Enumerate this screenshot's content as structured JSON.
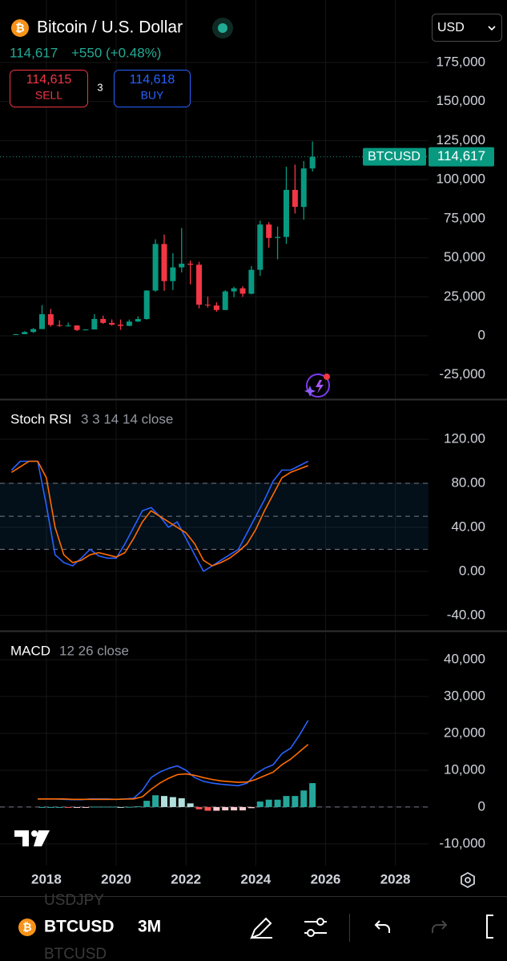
{
  "header": {
    "title": "Bitcoin / U.S. Dollar",
    "price": "114,617",
    "change": "+550 (+0.48%)",
    "sell_price": "114,615",
    "sell_label": "SELL",
    "spread": "3",
    "buy_price": "114,618",
    "buy_label": "BUY",
    "currency": "USD"
  },
  "chart_data": [
    {
      "type": "candlestick",
      "x": [
        2017.0,
        2017.25,
        2017.5,
        2017.75,
        2018.0,
        2018.25,
        2018.5,
        2018.75,
        2019.0,
        2019.25,
        2019.5,
        2019.75,
        2020.0,
        2020.25,
        2020.5,
        2020.75,
        2021.0,
        2021.25,
        2021.5,
        2021.75,
        2022.0,
        2022.25,
        2022.5,
        2022.75,
        2023.0,
        2023.25,
        2023.5,
        2023.75,
        2024.0,
        2024.25,
        2024.5,
        2024.75,
        2025.0,
        2025.25,
        2025.5
      ],
      "open": [
        960,
        1070,
        2480,
        4340,
        13850,
        6930,
        6390,
        6630,
        3740,
        4100,
        10820,
        8300,
        7200,
        6420,
        9140,
        10780,
        28990,
        58800,
        35040,
        43830,
        46220,
        45540,
        19930,
        19430,
        16550,
        28470,
        30470,
        26970,
        42280,
        71290,
        62680,
        63330,
        93430,
        82530,
        107170
      ],
      "high": [
        1300,
        2980,
        5000,
        19700,
        17250,
        9990,
        8500,
        6780,
        4150,
        13880,
        12950,
        10540,
        10500,
        10430,
        12480,
        29300,
        61800,
        64850,
        52920,
        69000,
        48200,
        47450,
        25200,
        21480,
        29200,
        31430,
        31800,
        44700,
        73800,
        72800,
        70000,
        108350,
        109600,
        111900,
        124450
      ],
      "low": [
        890,
        1060,
        1830,
        4300,
        5900,
        5750,
        5880,
        3120,
        3350,
        4070,
        7720,
        6520,
        3850,
        6150,
        8900,
        10370,
        28130,
        28800,
        29300,
        40600,
        32950,
        17600,
        18150,
        15480,
        16500,
        24750,
        24900,
        26560,
        38500,
        56500,
        49000,
        58900,
        78300,
        74400,
        105200
      ],
      "close": [
        1070,
        2480,
        4340,
        13850,
        6930,
        6390,
        6630,
        3740,
        4100,
        10820,
        8300,
        7200,
        6420,
        9140,
        10780,
        28990,
        58800,
        35040,
        43830,
        46220,
        45540,
        19930,
        19430,
        16550,
        28470,
        30470,
        26970,
        42280,
        71290,
        62680,
        63330,
        93430,
        82530,
        107170,
        114617
      ],
      "up_color": "#089981",
      "down_color": "#f23645",
      "ylim": [
        -40000,
        215000
      ],
      "yticks": [
        {
          "value": 175000,
          "label": "175,000"
        },
        {
          "value": 150000,
          "label": "150,000"
        },
        {
          "value": 125000,
          "label": "125,000"
        },
        {
          "value": 100000,
          "label": "100,000"
        },
        {
          "value": 75000,
          "label": "75,000"
        },
        {
          "value": 50000,
          "label": "50,000"
        },
        {
          "value": 25000,
          "label": "25,000"
        },
        0,
        {
          "value": -25000,
          "label": "-25,000"
        }
      ],
      "price_line": {
        "name": "BTCUSD",
        "value": 114617,
        "label": "114,617"
      }
    },
    {
      "type": "line",
      "title": "Stoch RSI",
      "subtitle": "3 3 14 14 close",
      "x": [
        2017.0,
        2017.25,
        2017.5,
        2017.75,
        2018.0,
        2018.25,
        2018.5,
        2018.75,
        2019.0,
        2019.25,
        2019.5,
        2019.75,
        2020.0,
        2020.25,
        2020.5,
        2020.75,
        2021.0,
        2021.25,
        2021.5,
        2021.75,
        2022.0,
        2022.25,
        2022.5,
        2022.75,
        2023.0,
        2023.25,
        2023.5,
        2023.75,
        2024.0,
        2024.25,
        2024.5,
        2024.75,
        2025.0,
        2025.25,
        2025.5
      ],
      "series": [
        {
          "color": "#2962ff",
          "values": [
            92,
            100,
            100,
            100,
            60,
            15,
            8,
            5,
            12,
            20,
            14,
            12,
            12,
            25,
            40,
            55,
            58,
            50,
            40,
            45,
            30,
            15,
            0,
            5,
            10,
            15,
            20,
            35,
            50,
            65,
            82,
            92,
            92,
            96,
            100
          ]
        },
        {
          "color": "#ff6d00",
          "values": [
            90,
            95,
            100,
            100,
            85,
            40,
            15,
            8,
            10,
            15,
            17,
            15,
            13,
            17,
            30,
            45,
            55,
            50,
            45,
            40,
            35,
            25,
            10,
            5,
            8,
            12,
            18,
            25,
            38,
            55,
            70,
            85,
            90,
            93,
            96
          ]
        }
      ],
      "bands": {
        "upper": 80,
        "middle": 50,
        "lower": 20
      },
      "ylim": [
        -54,
        155
      ],
      "yticks": [
        {
          "value": 120,
          "label": "120.00"
        },
        {
          "value": 80,
          "label": "80.00"
        },
        {
          "value": 40,
          "label": "40.00"
        },
        {
          "value": 0,
          "label": "0.00"
        },
        {
          "value": -40,
          "label": "-40.00"
        }
      ]
    },
    {
      "type": "macd",
      "title": "MACD",
      "subtitle": "12 26 close",
      "x": [
        2017.0,
        2017.25,
        2017.5,
        2017.75,
        2018.0,
        2018.25,
        2018.5,
        2018.75,
        2019.0,
        2019.25,
        2019.5,
        2019.75,
        2020.0,
        2020.25,
        2020.5,
        2020.75,
        2021.0,
        2021.25,
        2021.5,
        2021.75,
        2022.0,
        2022.25,
        2022.5,
        2022.75,
        2023.0,
        2023.25,
        2023.5,
        2023.75,
        2024.0,
        2024.25,
        2024.5,
        2024.75,
        2025.0,
        2025.25,
        2025.5
      ],
      "series": [
        {
          "color": "#2962ff",
          "values": [
            null,
            null,
            null,
            2200,
            2200,
            2200,
            2100,
            2000,
            2000,
            2200,
            2200,
            2200,
            2100,
            2200,
            2400,
            4500,
            8000,
            9500,
            10500,
            11200,
            10000,
            8000,
            7000,
            6500,
            6200,
            6000,
            5800,
            6500,
            9000,
            10500,
            11500,
            14500,
            16000,
            19500,
            23500
          ]
        },
        {
          "color": "#ff6d00",
          "values": [
            null,
            null,
            null,
            2200,
            2200,
            2200,
            2200,
            2100,
            2100,
            2100,
            2100,
            2100,
            2100,
            2150,
            2200,
            2800,
            4800,
            6500,
            7800,
            8800,
            9000,
            8600,
            8000,
            7500,
            7100,
            6900,
            6700,
            6800,
            7500,
            8500,
            9500,
            11500,
            13000,
            15000,
            17000
          ]
        }
      ],
      "histogram": [
        null,
        null,
        null,
        0,
        0,
        0,
        -100,
        -100,
        -100,
        100,
        100,
        100,
        0,
        50,
        200,
        1700,
        3200,
        3000,
        2700,
        2400,
        1000,
        -600,
        -1000,
        -1000,
        -900,
        -900,
        -900,
        -300,
        1500,
        2000,
        2000,
        3000,
        3000,
        4500,
        6500
      ],
      "ylim": [
        -15900,
        47200
      ],
      "yticks": [
        {
          "value": 40000,
          "label": "40,000"
        },
        {
          "value": 30000,
          "label": "30,000"
        },
        {
          "value": 20000,
          "label": "20,000"
        },
        {
          "value": 10000,
          "label": "10,000"
        },
        0,
        {
          "value": -10000,
          "label": "-10,000"
        }
      ],
      "xlim": [
        2016.67,
        2028.95
      ],
      "xticks": [
        2018,
        2020,
        2022,
        2024,
        2026,
        2028
      ]
    }
  ],
  "toolbar": {
    "symbol": "BTCUSD",
    "interval": "3M",
    "faded_above": "USDJPY",
    "faded_below": "BTCUSD"
  }
}
